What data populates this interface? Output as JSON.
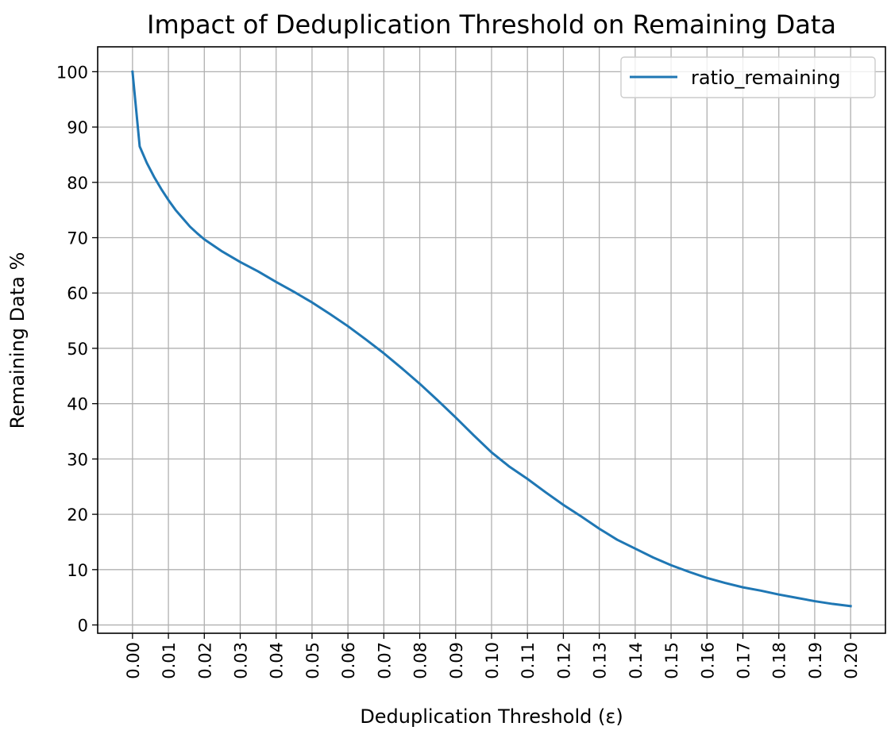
{
  "chart_data": {
    "type": "line",
    "title": "Impact of Deduplication Threshold on Remaining Data",
    "xlabel": "Deduplication Threshold (ε)",
    "ylabel": "Remaining Data %",
    "xlim": [
      -0.0097,
      0.2097
    ],
    "ylim": [
      -1.5,
      104.5
    ],
    "x_ticks": [
      0.0,
      0.01,
      0.02,
      0.03,
      0.04,
      0.05,
      0.06,
      0.07,
      0.08,
      0.09,
      0.1,
      0.11,
      0.12,
      0.13,
      0.14,
      0.15,
      0.16,
      0.17,
      0.18,
      0.19,
      0.2
    ],
    "x_tick_labels": [
      "0.00",
      "0.01",
      "0.02",
      "0.03",
      "0.04",
      "0.05",
      "0.06",
      "0.07",
      "0.08",
      "0.09",
      "0.10",
      "0.11",
      "0.12",
      "0.13",
      "0.14",
      "0.15",
      "0.16",
      "0.17",
      "0.18",
      "0.19",
      "0.20"
    ],
    "y_ticks": [
      0,
      10,
      20,
      30,
      40,
      50,
      60,
      70,
      80,
      90,
      100
    ],
    "y_tick_labels": [
      "0",
      "10",
      "20",
      "30",
      "40",
      "50",
      "60",
      "70",
      "80",
      "90",
      "100"
    ],
    "grid": true,
    "legend_position": "top-right",
    "series": [
      {
        "name": "ratio_remaining",
        "color": "#1f77b4",
        "x": [
          0.0,
          0.002,
          0.004,
          0.006,
          0.008,
          0.01,
          0.012,
          0.014,
          0.016,
          0.018,
          0.02,
          0.025,
          0.03,
          0.035,
          0.04,
          0.045,
          0.05,
          0.055,
          0.06,
          0.065,
          0.07,
          0.075,
          0.08,
          0.085,
          0.09,
          0.095,
          0.1,
          0.105,
          0.11,
          0.115,
          0.12,
          0.125,
          0.13,
          0.135,
          0.14,
          0.145,
          0.15,
          0.155,
          0.16,
          0.165,
          0.17,
          0.175,
          0.18,
          0.185,
          0.19,
          0.195,
          0.2
        ],
        "y": [
          100.0,
          86.5,
          83.5,
          81.0,
          78.8,
          76.8,
          75.0,
          73.5,
          72.0,
          70.8,
          69.7,
          67.5,
          65.6,
          63.9,
          62.0,
          60.2,
          58.3,
          56.2,
          54.0,
          51.6,
          49.1,
          46.4,
          43.6,
          40.6,
          37.5,
          34.3,
          31.2,
          28.6,
          26.4,
          24.0,
          21.7,
          19.6,
          17.4,
          15.4,
          13.8,
          12.2,
          10.8,
          9.6,
          8.5,
          7.6,
          6.8,
          6.2,
          5.5,
          4.9,
          4.3,
          3.8,
          3.4
        ]
      }
    ]
  },
  "colors": {
    "line": "#1f77b4",
    "grid": "#b0b0b0",
    "axes": "#000000",
    "background": "#ffffff",
    "legend_border": "#cccccc"
  }
}
